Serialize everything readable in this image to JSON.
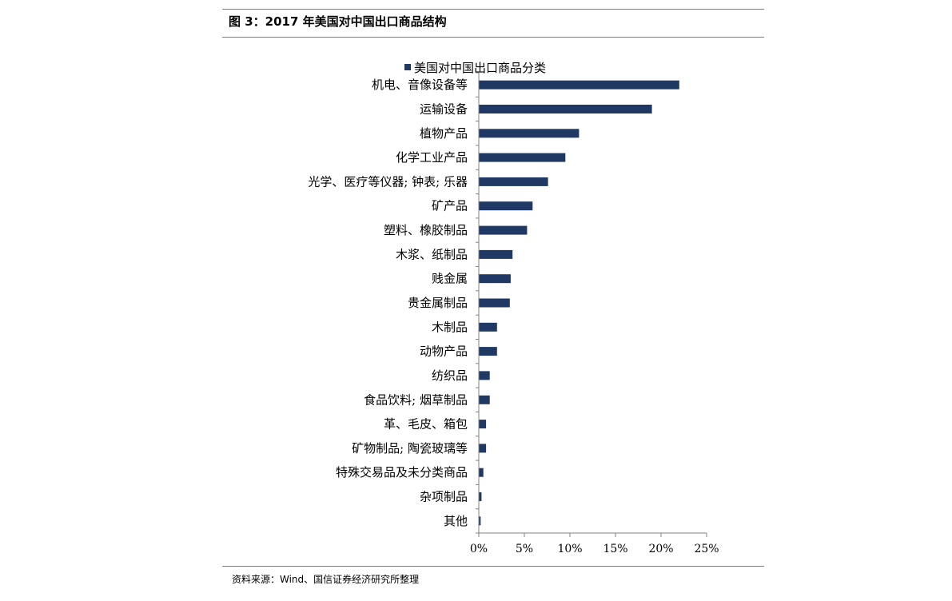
{
  "figure": {
    "title": "图 3：2017 年美国对中国出口商品结构",
    "source": "资料来源：Wind、国信证券经济研究所整理"
  },
  "colors": {
    "bar": "#1f3864",
    "axis": "#808080"
  },
  "chart_data": {
    "type": "bar",
    "orientation": "horizontal",
    "title": "",
    "xlabel": "",
    "ylabel": "",
    "xlim": [
      0,
      25
    ],
    "x_ticks": [
      0,
      5,
      10,
      15,
      20,
      25
    ],
    "x_tick_labels": [
      "0%",
      "5%",
      "10%",
      "15%",
      "20%",
      "25%"
    ],
    "legend_position": "top",
    "grid": false,
    "categories": [
      "机电、音像设备等",
      "运输设备",
      "植物产品",
      "化学工业产品",
      "光学、医疗等仪器; 钟表; 乐器",
      "矿产品",
      "塑料、橡胶制品",
      "木浆、纸制品",
      "贱金属",
      "贵金属制品",
      "木制品",
      "动物产品",
      "纺织品",
      "食品饮料; 烟草制品",
      "革、毛皮、箱包",
      "矿物制品; 陶瓷玻璃等",
      "特殊交易品及未分类商品",
      "杂项制品",
      "其他"
    ],
    "series": [
      {
        "name": "美国对中国出口商品分类",
        "values": [
          22.0,
          19.0,
          11.0,
          9.5,
          7.6,
          5.9,
          5.3,
          3.7,
          3.5,
          3.4,
          2.0,
          2.0,
          1.2,
          1.2,
          0.8,
          0.8,
          0.5,
          0.3,
          0.2
        ]
      }
    ]
  }
}
